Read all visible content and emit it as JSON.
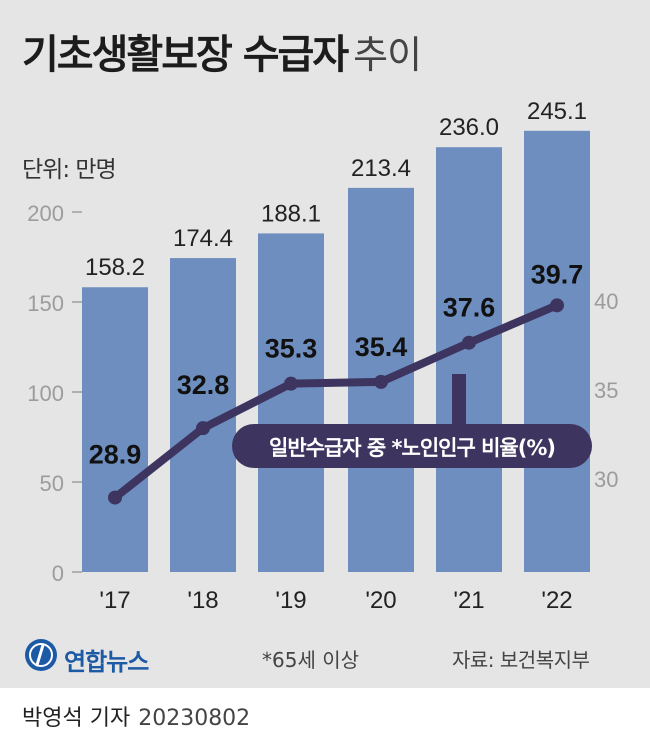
{
  "title": {
    "main": "기초생활보장 수급자",
    "sub": "추이"
  },
  "unit_label": "단위: 만명",
  "chart_data": {
    "type": "bar",
    "categories": [
      "'17",
      "'18",
      "'19",
      "'20",
      "'21",
      "'22"
    ],
    "left_axis": {
      "ticks": [
        "0",
        "50",
        "100",
        "150",
        "200"
      ],
      "tick_values": [
        0,
        50,
        100,
        150,
        200
      ],
      "ylim": [
        0,
        250
      ]
    },
    "right_axis": {
      "ticks": [
        "30",
        "35",
        "40"
      ],
      "tick_values": [
        30,
        35,
        40
      ],
      "ylim": [
        25,
        45
      ]
    },
    "series": [
      {
        "type": "bar",
        "values": [
          158.2,
          174.4,
          188.1,
          213.4,
          236.0,
          245.1
        ],
        "labels": [
          "158.2",
          "174.4",
          "188.1",
          "213.4",
          "236.0",
          "245.1"
        ],
        "color": "#6e8ebf"
      },
      {
        "type": "line",
        "name": "일반수급자 중 *노인인구 비율(%)",
        "axis": "right",
        "values": [
          28.9,
          32.8,
          35.3,
          35.4,
          37.6,
          39.7
        ],
        "labels": [
          "28.9",
          "32.8",
          "35.3",
          "35.4",
          "37.6",
          "39.7"
        ],
        "color": "#3d3560"
      }
    ],
    "grid": false
  },
  "footer": {
    "logo": "연합뉴스",
    "note": "*65세 이상",
    "source": "자료: 보건복지부"
  },
  "byline": {
    "reporter": "박영석 기자",
    "date": "20230802"
  }
}
